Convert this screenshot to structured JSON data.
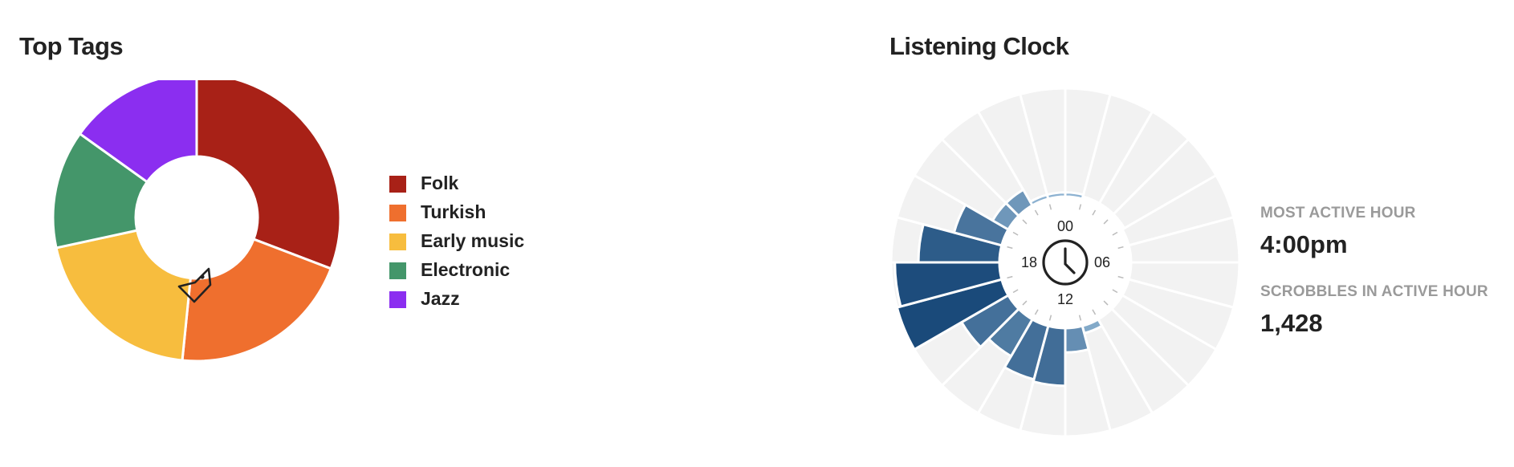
{
  "top_tags": {
    "title": "Top Tags",
    "icon": "tag-icon"
  },
  "listening_clock": {
    "title": "Listening Clock",
    "icon": "clock-icon",
    "hour_labels": {
      "top": "00",
      "right": "06",
      "bottom": "12",
      "left": "18"
    },
    "stats": [
      {
        "label": "MOST ACTIVE HOUR",
        "value": "4:00pm"
      },
      {
        "label": "SCROBBLES IN ACTIVE HOUR",
        "value": "1,428"
      }
    ]
  },
  "chart_data": [
    {
      "type": "pie",
      "title": "Top Tags",
      "legend_position": "right",
      "categories": [
        "Folk",
        "Turkish",
        "Early music",
        "Electronic",
        "Jazz"
      ],
      "values": [
        30.8,
        20.8,
        20.0,
        13.3,
        15.1
      ],
      "colors": [
        "#a82117",
        "#ef6f2e",
        "#f7bd3e",
        "#44966a",
        "#8b2ef0"
      ]
    },
    {
      "type": "bar",
      "title": "Listening Clock",
      "layout": "radial",
      "categories": [
        "00",
        "01",
        "02",
        "03",
        "04",
        "05",
        "06",
        "07",
        "08",
        "09",
        "10",
        "11",
        "12",
        "13",
        "14",
        "15",
        "16",
        "17",
        "18",
        "19",
        "20",
        "21",
        "22",
        "23"
      ],
      "values": [
        56,
        30,
        18,
        10,
        0,
        0,
        0,
        0,
        0,
        0,
        100,
        320,
        760,
        730,
        560,
        710,
        1428,
        1378,
        1068,
        650,
        238,
        238,
        56,
        56
      ],
      "ylim": [
        0,
        1428
      ],
      "colors": {
        "low": "#a9cce6",
        "high": "#1a4a7a",
        "empty": "#f2f2f2"
      }
    }
  ]
}
